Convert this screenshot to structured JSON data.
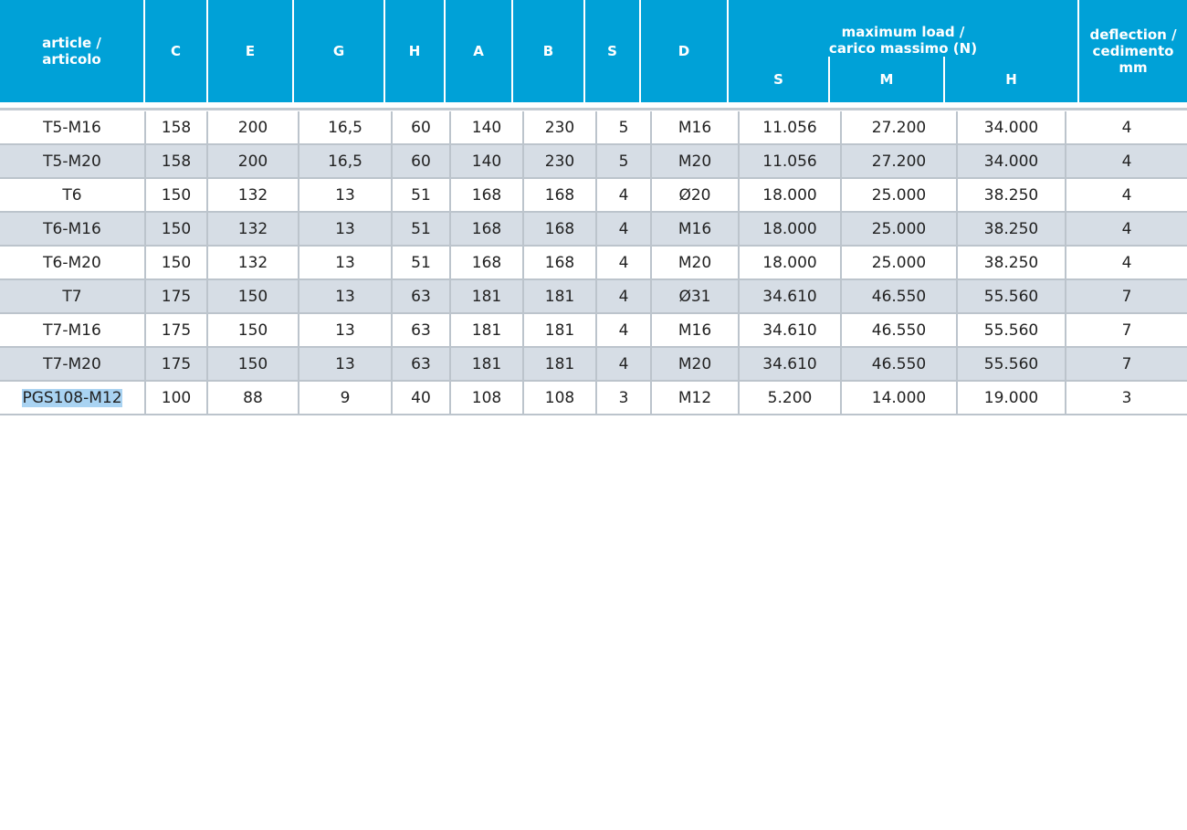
{
  "header": {
    "columns": [
      "article /\narticolo",
      "C",
      "E",
      "G",
      "H",
      "A",
      "B",
      "S",
      "D"
    ],
    "group": "maximum load /\ncarico massimo  (N)",
    "subcolumns": [
      "S",
      "M",
      "H"
    ],
    "deflection": "deflection /\ncedimento\nmm"
  },
  "table": {
    "rows": [
      [
        "T5-M16",
        "158",
        "200",
        "16,5",
        "60",
        "140",
        "230",
        "5",
        "M16",
        "11.056",
        "27.200",
        "34.000",
        "4"
      ],
      [
        "T5-M20",
        "158",
        "200",
        "16,5",
        "60",
        "140",
        "230",
        "5",
        "M20",
        "11.056",
        "27.200",
        "34.000",
        "4"
      ],
      [
        "T6",
        "150",
        "132",
        "13",
        "51",
        "168",
        "168",
        "4",
        "Ø20",
        "18.000",
        "25.000",
        "38.250",
        "4"
      ],
      [
        "T6-M16",
        "150",
        "132",
        "13",
        "51",
        "168",
        "168",
        "4",
        "M16",
        "18.000",
        "25.000",
        "38.250",
        "4"
      ],
      [
        "T6-M20",
        "150",
        "132",
        "13",
        "51",
        "168",
        "168",
        "4",
        "M20",
        "18.000",
        "25.000",
        "38.250",
        "4"
      ],
      [
        "T7",
        "175",
        "150",
        "13",
        "63",
        "181",
        "181",
        "4",
        "Ø31",
        "34.610",
        "46.550",
        "55.560",
        "7"
      ],
      [
        "T7-M16",
        "175",
        "150",
        "13",
        "63",
        "181",
        "181",
        "4",
        "M16",
        "34.610",
        "46.550",
        "55.560",
        "7"
      ],
      [
        "T7-M20",
        "175",
        "150",
        "13",
        "63",
        "181",
        "181",
        "4",
        "M20",
        "34.610",
        "46.550",
        "55.560",
        "7"
      ],
      [
        "PGS108-M12",
        "100",
        "88",
        "9",
        "40",
        "108",
        "108",
        "3",
        "M12",
        "5.200",
        "14.000",
        "19.000",
        "3"
      ]
    ]
  }
}
